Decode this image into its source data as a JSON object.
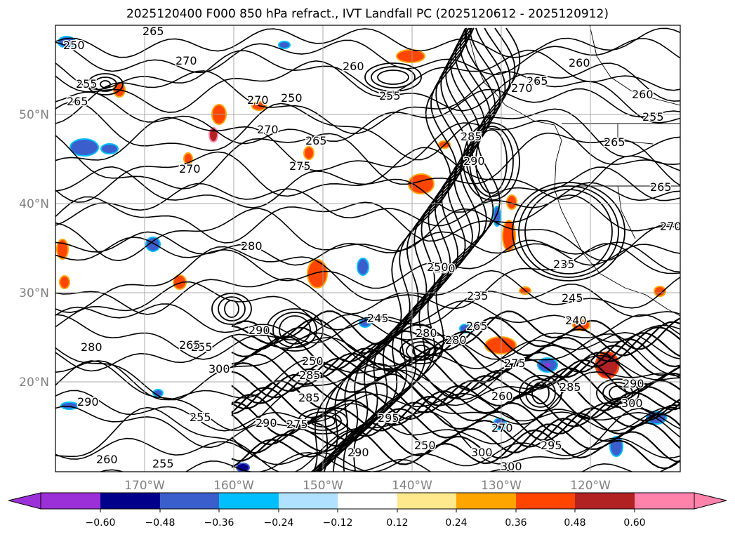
{
  "title": "2025120400 F000 850 hPa refract., IVT Landfall PC (2025120612 - 2025120912)",
  "map": {
    "lat_labels": [
      "50°N",
      "40°N",
      "30°N",
      "20°N"
    ],
    "lon_labels": [
      "170°W",
      "160°W",
      "150°W",
      "140°W",
      "130°W",
      "120°W"
    ],
    "contour_labels": [
      "250",
      "265",
      "270",
      "255",
      "265",
      "260",
      "250",
      "270",
      "270",
      "265",
      "275",
      "270",
      "280",
      "260",
      "255",
      "265",
      "270",
      "260",
      "250",
      "265",
      "255",
      "285",
      "290",
      "255",
      "250",
      "235",
      "235",
      "245",
      "265",
      "240",
      "280",
      "290",
      "285",
      "290",
      "300",
      "295",
      "300",
      "300",
      "255",
      "260",
      "280",
      "265",
      "290",
      "285",
      "275",
      "295",
      "300",
      "290",
      "250",
      "245",
      "260",
      "270",
      "280",
      "285",
      "255",
      "265",
      "270",
      "250",
      "275",
      "290"
    ],
    "gridline_color": "#a0a0a0",
    "contour_color": "#000000",
    "coastline_color": "#000000"
  },
  "colorbar": {
    "tick_labels": [
      "−0.60",
      "−0.48",
      "−0.36",
      "−0.24",
      "−0.12",
      "0.12",
      "0.24",
      "0.36",
      "0.48",
      "0.60"
    ],
    "colors": [
      "#9b30d9",
      "#00008b",
      "#3a5fcd",
      "#00bfff",
      "#b0e2ff",
      "#ffffff",
      "#ffe98c",
      "#ffa500",
      "#ff4500",
      "#b22222",
      "#ff82ab"
    ]
  }
}
